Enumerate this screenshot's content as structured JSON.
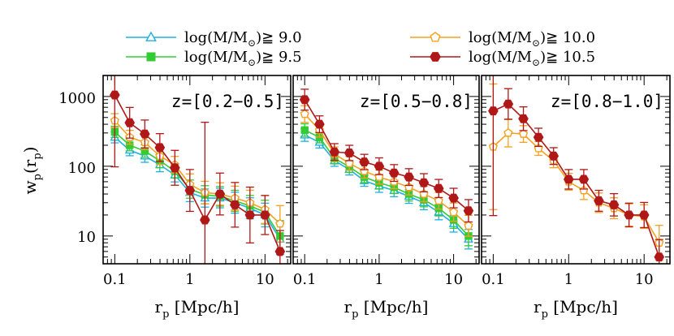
{
  "figure": {
    "ylabel_main": "w",
    "ylabel_sub": "p",
    "ylabel_arg_open": "(r",
    "ylabel_arg_sub": "p",
    "ylabel_arg_close": ")",
    "ytick_labels": [
      "1000",
      "100",
      "10"
    ]
  },
  "legend": [
    {
      "text": "log(M/M",
      "sun": "⊙",
      "rel": ")≧ 9.0",
      "color": "#20b0e0",
      "marker": "triangle-open"
    },
    {
      "text": "log(M/M",
      "sun": "⊙",
      "rel": ")≧ 9.5",
      "color": "#33cc33",
      "marker": "square-filled"
    },
    {
      "text": "log(M/M",
      "sun": "⊙",
      "rel": ")≧ 10.0",
      "color": "#f5a020",
      "marker": "pentagon-open"
    },
    {
      "text": "log(M/M",
      "sun": "⊙",
      "rel": ")≧ 10.5",
      "color": "#b01818",
      "marker": "hexagon-filled"
    }
  ],
  "chart_data": [
    {
      "type": "line",
      "title": "z=[0.2−0.5]",
      "xlabel": "r",
      "xlabel_sub": "p",
      "xlabel_unit": " [Mpc/h]",
      "ylabel": "w_p(r_p)",
      "xscale": "log",
      "yscale": "log",
      "xlim": [
        0.07,
        22
      ],
      "ylim": [
        4,
        2000
      ],
      "xtick_labels": [
        "0.1",
        "1",
        "10"
      ],
      "x": [
        0.1,
        0.158,
        0.251,
        0.398,
        0.631,
        1.0,
        1.585,
        2.512,
        3.981,
        6.31,
        10.0,
        15.85
      ],
      "series": [
        {
          "name": "log(M/M⊙)≧ 9.0",
          "values": [
            260,
            170,
            140,
            105,
            75,
            42,
            35,
            35,
            30,
            25,
            20,
            9
          ],
          "err": [
            0.08,
            0.08,
            0.09,
            0.1,
            0.1,
            0.13,
            0.13,
            0.14,
            0.15,
            0.15,
            0.17,
            0.22
          ]
        },
        {
          "name": "log(M/M⊙)≧ 9.5",
          "values": [
            310,
            200,
            165,
            120,
            85,
            47,
            39,
            37,
            32,
            27,
            22,
            10
          ],
          "err": [
            0.08,
            0.08,
            0.09,
            0.1,
            0.1,
            0.13,
            0.13,
            0.14,
            0.15,
            0.15,
            0.17,
            0.22
          ]
        },
        {
          "name": "log(M/M⊙)≧ 10.0",
          "values": [
            450,
            260,
            220,
            140,
            105,
            55,
            42,
            40,
            35,
            30,
            24,
            15
          ],
          "err": [
            0.1,
            0.1,
            0.1,
            0.12,
            0.12,
            0.15,
            0.16,
            0.16,
            0.17,
            0.18,
            0.2,
            0.26
          ]
        },
        {
          "name": "log(M/M⊙)≧ 10.5",
          "values": [
            1050,
            420,
            290,
            185,
            95,
            45,
            17,
            40,
            28,
            20,
            20,
            6
          ],
          "err": [
            1.03,
            0.22,
            0.2,
            0.2,
            0.25,
            0.3,
            1.4,
            0.3,
            0.32,
            0.4,
            0.28,
            0.3
          ]
        }
      ]
    },
    {
      "type": "line",
      "title": "z=[0.5−0.8]",
      "xlabel": "r",
      "xlabel_sub": "p",
      "xlabel_unit": " [Mpc/h]",
      "xscale": "log",
      "yscale": "log",
      "xlim": [
        0.07,
        22
      ],
      "ylim": [
        4,
        2000
      ],
      "xtick_labels": [
        "0.1",
        "1",
        "10"
      ],
      "x": [
        0.1,
        0.158,
        0.251,
        0.398,
        0.631,
        1.0,
        1.585,
        2.512,
        3.981,
        6.31,
        10.0,
        15.85
      ],
      "series": [
        {
          "name": "log(M/M⊙)≧ 9.0",
          "values": [
            280,
            220,
            120,
            90,
            62,
            52,
            45,
            37,
            30,
            22,
            15,
            9
          ],
          "err": [
            0.09,
            0.08,
            0.08,
            0.08,
            0.08,
            0.09,
            0.09,
            0.1,
            0.1,
            0.11,
            0.12,
            0.14
          ]
        },
        {
          "name": "log(M/M⊙)≧ 9.5",
          "values": [
            330,
            260,
            130,
            98,
            70,
            58,
            50,
            40,
            33,
            25,
            17,
            10
          ],
          "err": [
            0.09,
            0.08,
            0.08,
            0.08,
            0.08,
            0.09,
            0.09,
            0.1,
            0.1,
            0.11,
            0.12,
            0.14
          ]
        },
        {
          "name": "log(M/M⊙)≧ 10.0",
          "values": [
            560,
            330,
            150,
            110,
            85,
            70,
            60,
            50,
            40,
            32,
            22,
            14
          ],
          "err": [
            0.12,
            0.1,
            0.1,
            0.1,
            0.1,
            0.1,
            0.1,
            0.11,
            0.11,
            0.12,
            0.13,
            0.15
          ]
        },
        {
          "name": "log(M/M⊙)≧ 10.5",
          "values": [
            900,
            400,
            160,
            155,
            115,
            100,
            80,
            70,
            58,
            48,
            35,
            23
          ],
          "err": [
            0.15,
            0.12,
            0.12,
            0.11,
            0.11,
            0.12,
            0.12,
            0.12,
            0.13,
            0.13,
            0.14,
            0.16
          ]
        }
      ]
    },
    {
      "type": "line",
      "title": "z=[0.8−1.0]",
      "xlabel": "r",
      "xlabel_sub": "p",
      "xlabel_unit": " [Mpc/h]",
      "xscale": "log",
      "yscale": "log",
      "xlim": [
        0.07,
        22
      ],
      "ylim": [
        4,
        2000
      ],
      "xtick_labels": [
        "0.1",
        "1",
        "10"
      ],
      "x": [
        0.1,
        0.158,
        0.251,
        0.398,
        0.631,
        1.0,
        1.585,
        2.512,
        3.981,
        6.31,
        10.0,
        15.85
      ],
      "series": [
        {
          "name": "log(M/M⊙)≧ 10.0",
          "values": [
            190,
            300,
            290,
            180,
            120,
            60,
            45,
            30,
            25,
            20,
            19,
            8
          ],
          "err": [
            0.9,
            0.2,
            0.12,
            0.1,
            0.1,
            0.12,
            0.13,
            0.14,
            0.15,
            0.16,
            0.17,
            0.25
          ]
        },
        {
          "name": "log(M/M⊙)≧ 10.5",
          "values": [
            620,
            780,
            480,
            260,
            140,
            65,
            65,
            32,
            28,
            20,
            20,
            5
          ],
          "err": [
            1.5,
            0.22,
            0.17,
            0.13,
            0.12,
            0.14,
            0.14,
            0.15,
            0.16,
            0.17,
            0.18,
            0.25
          ]
        }
      ]
    }
  ]
}
